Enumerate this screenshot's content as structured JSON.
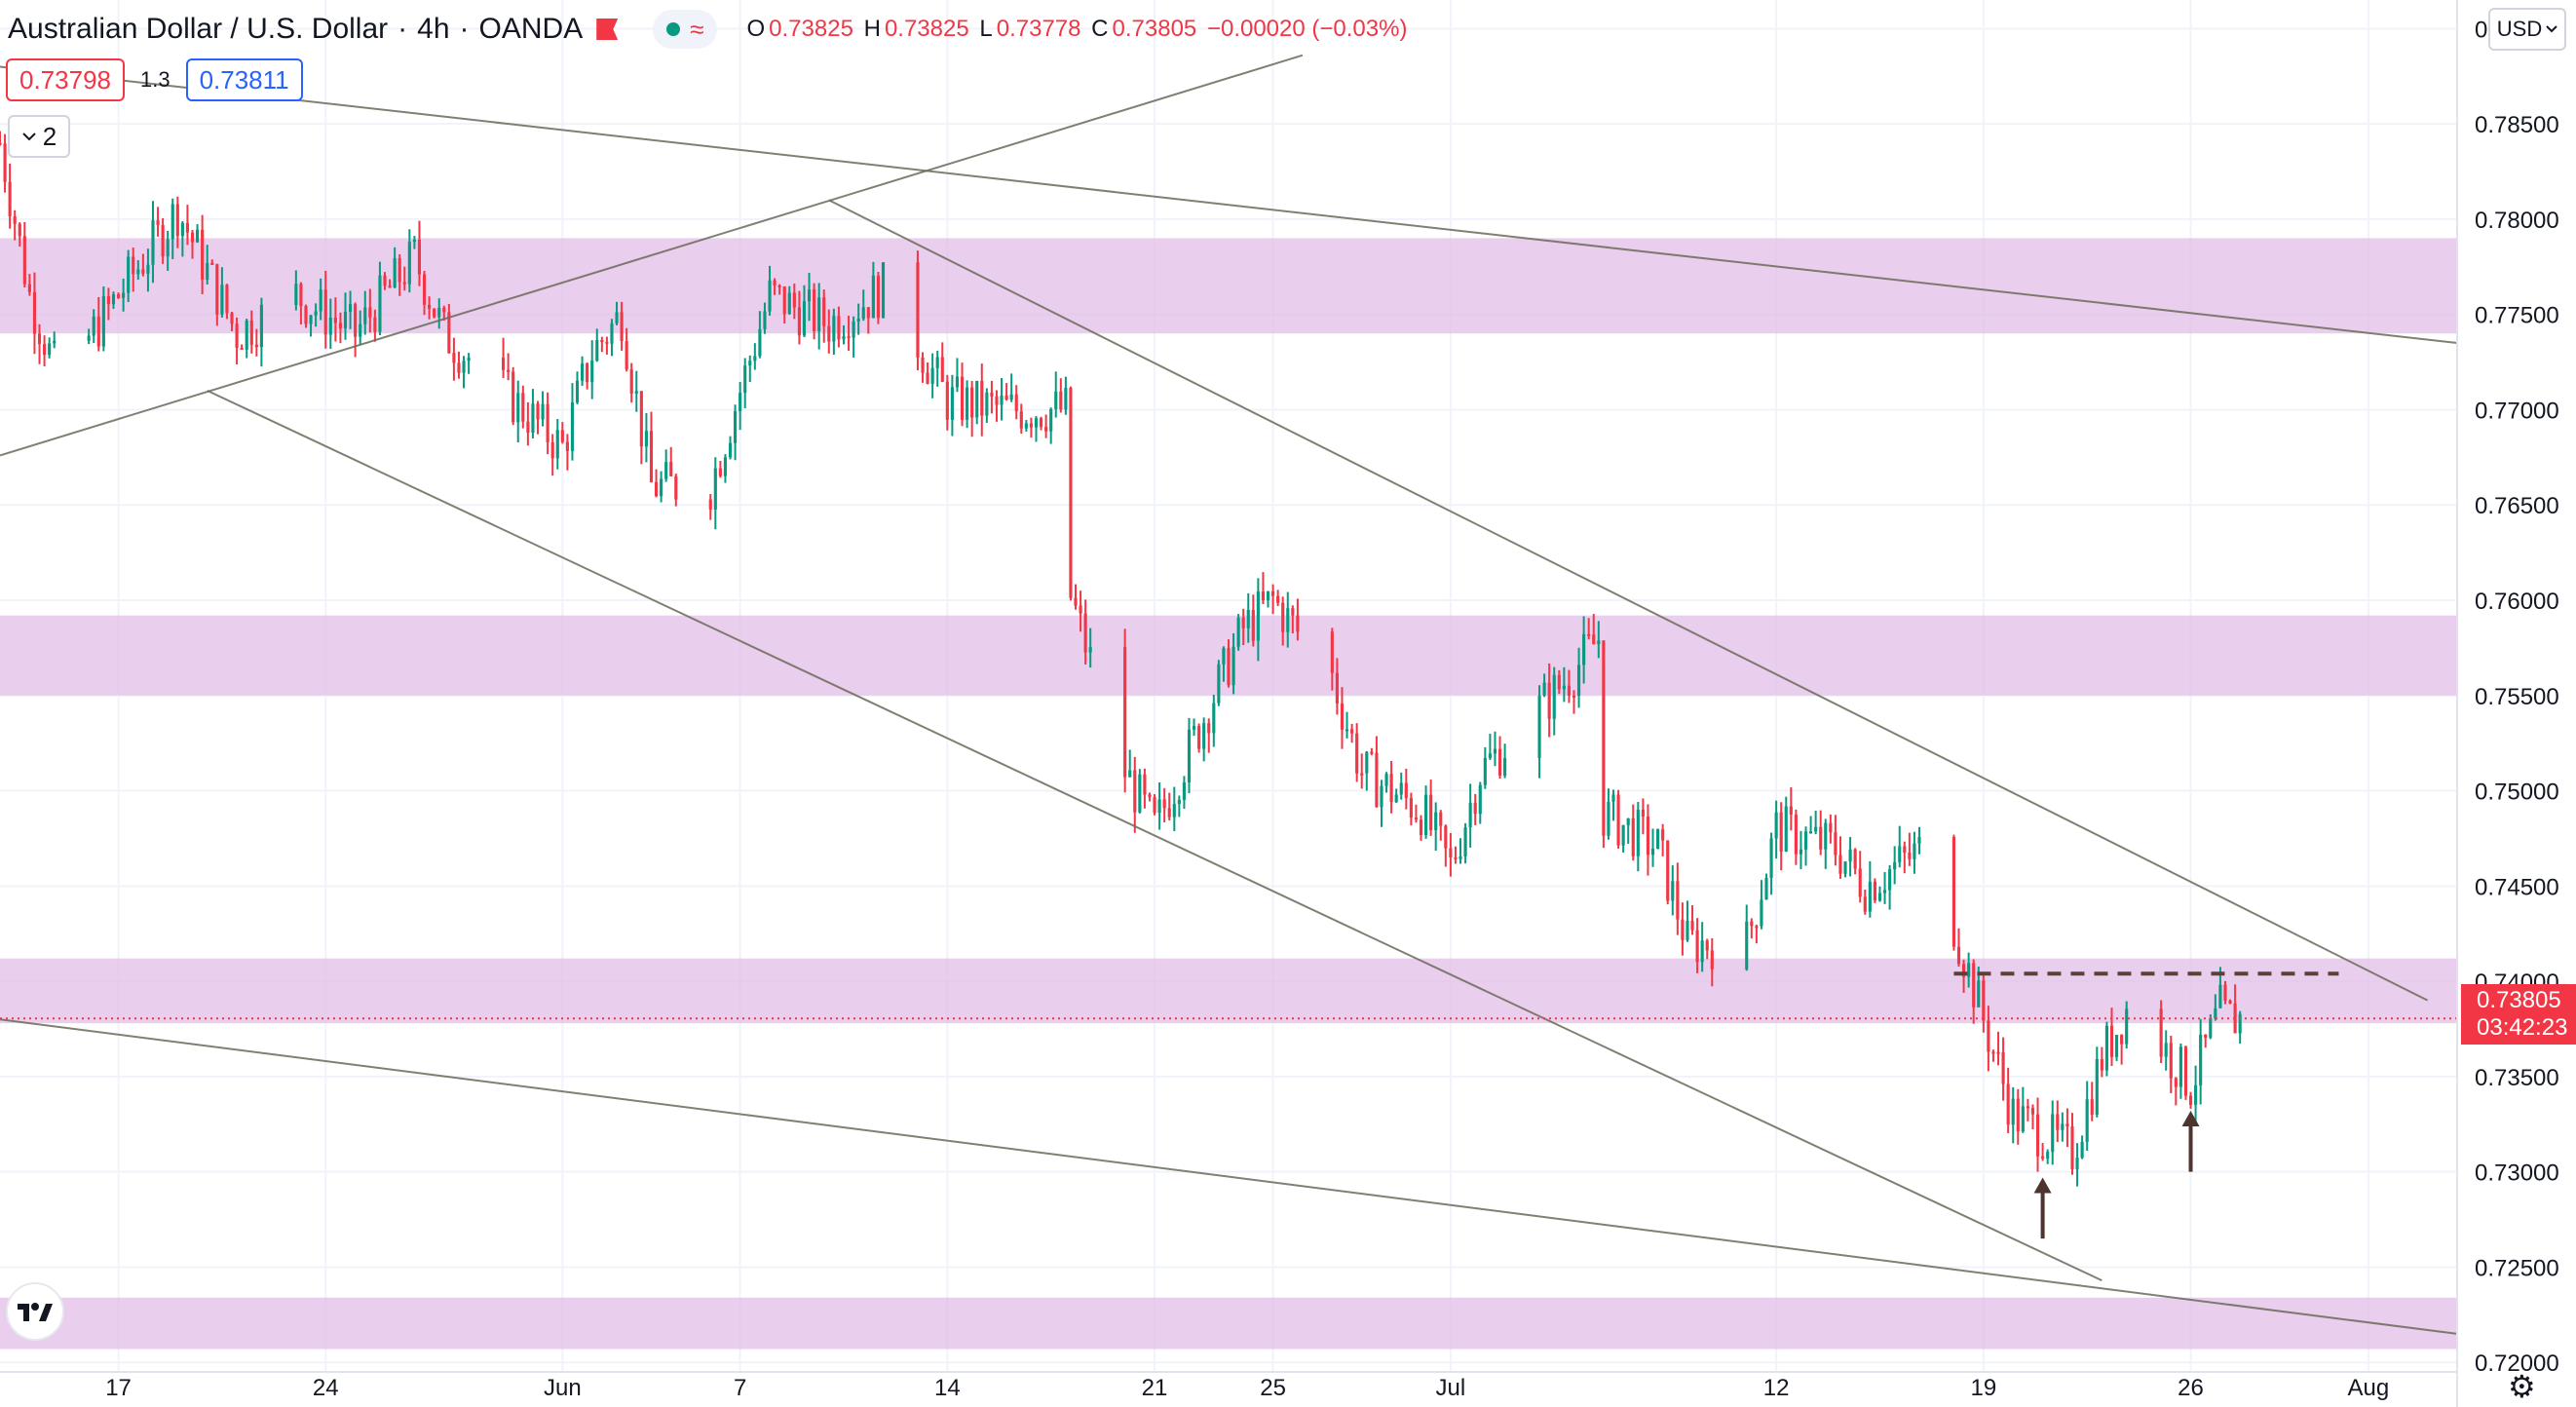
{
  "header": {
    "symbol": "Australian Dollar / U.S. Dollar",
    "interval": "4h",
    "exchange": "OANDA",
    "sep1": "·",
    "sep2": "·",
    "o_label": "O",
    "o_value": "0.73825",
    "h_label": "H",
    "h_value": "0.73825",
    "l_label": "L",
    "l_value": "0.73778",
    "c_label": "C",
    "c_value": "0.73805",
    "change": "−0.00020 (−0.03%)",
    "wave_icon": "≈"
  },
  "trade": {
    "sell_price": "0.73798",
    "spread": "1.3",
    "buy_price": "0.73811"
  },
  "indicators": {
    "count": "2"
  },
  "currency_selector": "USD",
  "last_price": {
    "value": "0.73805",
    "countdown": "03:42:23"
  },
  "colors": {
    "up": "#089981",
    "down": "#f23645",
    "zone": "#e1bee7",
    "line": "#6b6b5a",
    "grid": "#f0f3fa"
  },
  "chart_data": {
    "type": "candlestick",
    "y_axis": {
      "ticks": [
        "0.79000",
        "0.78500",
        "0.78000",
        "0.77500",
        "0.77000",
        "0.76500",
        "0.76000",
        "0.75500",
        "0.75000",
        "0.74500",
        "0.74000",
        "0.73500",
        "0.73000",
        "0.72500",
        "0.72000"
      ],
      "range": [
        0.7195,
        0.7915
      ]
    },
    "x_axis": {
      "ticks": [
        "17",
        "24",
        "Jun",
        "7",
        "14",
        "21",
        "25",
        "Jul",
        "12",
        "19",
        "26",
        "Aug"
      ],
      "tick_dates": [
        "2021-05-17",
        "2021-05-24",
        "2021-06-01",
        "2021-06-07",
        "2021-06-14",
        "2021-06-21",
        "2021-06-25",
        "2021-07-01",
        "2021-07-12",
        "2021-07-19",
        "2021-07-26",
        "2021-08-01"
      ],
      "range": [
        "2021-05-13",
        "2021-08-04"
      ]
    },
    "price_path": [
      [
        "2021-05-13",
        0.784
      ],
      [
        "2021-05-14",
        0.776
      ],
      [
        "2021-05-15",
        0.7715
      ],
      [
        "2021-05-17",
        0.776
      ],
      [
        "2021-05-19",
        0.7805
      ],
      [
        "2021-05-21",
        0.774
      ],
      [
        "2021-05-23",
        0.776
      ],
      [
        "2021-05-25",
        0.774
      ],
      [
        "2021-05-27",
        0.778
      ],
      [
        "2021-05-28",
        0.774
      ],
      [
        "2021-06-01",
        0.768
      ],
      [
        "2021-06-02",
        0.773
      ],
      [
        "2021-06-03",
        0.775
      ],
      [
        "2021-06-04",
        0.766
      ],
      [
        "2021-06-06",
        0.766
      ],
      [
        "2021-06-08",
        0.776
      ],
      [
        "2021-06-10",
        0.7745
      ],
      [
        "2021-06-12",
        0.7765
      ],
      [
        "2021-06-14",
        0.7705
      ],
      [
        "2021-06-16",
        0.77
      ],
      [
        "2021-06-18",
        0.77
      ],
      [
        "2021-06-18",
        0.761
      ],
      [
        "2021-06-20",
        0.751
      ],
      [
        "2021-06-21",
        0.748
      ],
      [
        "2021-06-23",
        0.755
      ],
      [
        "2021-06-24",
        0.7585
      ],
      [
        "2021-06-25",
        0.76
      ],
      [
        "2021-06-27",
        0.756
      ],
      [
        "2021-06-28",
        0.751
      ],
      [
        "2021-06-30",
        0.749
      ],
      [
        "2021-07-01",
        0.746
      ],
      [
        "2021-07-02",
        0.751
      ],
      [
        "2021-07-05",
        0.756
      ],
      [
        "2021-07-06",
        0.758
      ],
      [
        "2021-07-06",
        0.749
      ],
      [
        "2021-07-08",
        0.747
      ],
      [
        "2021-07-09",
        0.742
      ],
      [
        "2021-07-11",
        0.742
      ],
      [
        "2021-07-12",
        0.748
      ],
      [
        "2021-07-14",
        0.747
      ],
      [
        "2021-07-15",
        0.745
      ],
      [
        "2021-07-17",
        0.747
      ],
      [
        "2021-07-18",
        0.743
      ],
      [
        "2021-07-19",
        0.738
      ],
      [
        "2021-07-20",
        0.733
      ],
      [
        "2021-07-22",
        0.731
      ],
      [
        "2021-07-23",
        0.736
      ],
      [
        "2021-07-24",
        0.739
      ],
      [
        "2021-07-26",
        0.7345
      ],
      [
        "2021-07-27",
        0.7385
      ],
      [
        "2021-07-27",
        0.73805
      ]
    ],
    "support_resistance_zones": [
      [
        0.774,
        0.779
      ],
      [
        0.755,
        0.7592
      ],
      [
        0.7378,
        0.7412
      ],
      [
        0.7207,
        0.7234
      ]
    ],
    "trend_lines": [
      {
        "from": [
          "2021-05-13",
          0.788
        ],
        "to": [
          "2021-08-04",
          0.7735
        ]
      },
      {
        "from": [
          "2021-05-13",
          0.7676
        ],
        "to": [
          "2021-06-26",
          0.7886
        ]
      },
      {
        "from": [
          "2021-06-10",
          0.781
        ],
        "to": [
          "2021-08-03",
          0.739
        ]
      },
      {
        "from": [
          "2021-05-20",
          0.771
        ],
        "to": [
          "2021-07-23",
          0.7243
        ]
      },
      {
        "from": [
          "2021-05-13",
          0.738
        ],
        "to": [
          "2021-08-04",
          0.7215
        ]
      }
    ],
    "dashed_level": {
      "value": 0.7404,
      "from": "2021-07-18",
      "to": "2021-07-31"
    },
    "current_price_line": 0.73805,
    "arrows": [
      {
        "date": "2021-07-21",
        "price_from": 0.7265,
        "price_to": 0.7295
      },
      {
        "date": "2021-07-26",
        "price_from": 0.73,
        "price_to": 0.733
      }
    ]
  }
}
